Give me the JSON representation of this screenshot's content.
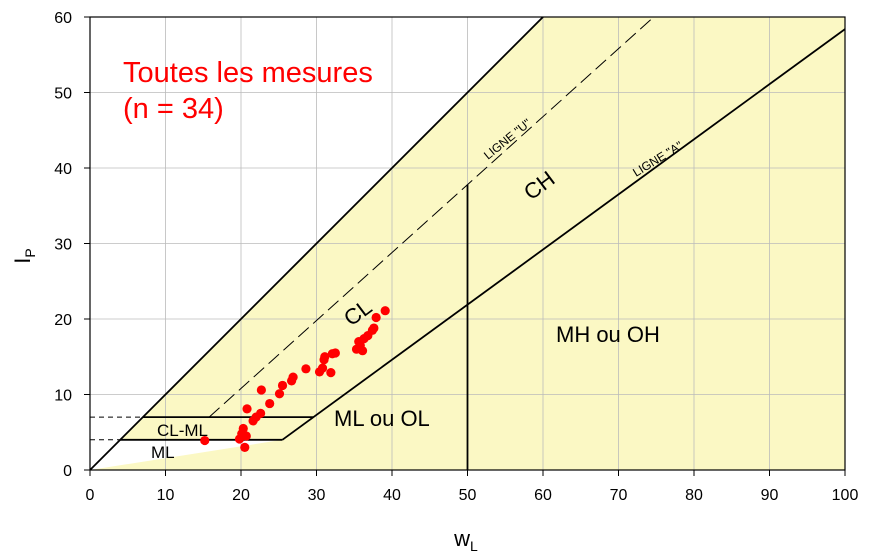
{
  "chart_data": {
    "type": "scatter",
    "title": "",
    "xlabel": "w",
    "xlabel_sub": "L",
    "ylabel": "I",
    "ylabel_sub": "P",
    "xlim": [
      0,
      100
    ],
    "ylim": [
      0,
      60
    ],
    "xticks": [
      0,
      10,
      20,
      30,
      40,
      50,
      60,
      70,
      80,
      90,
      100
    ],
    "yticks": [
      0,
      10,
      20,
      30,
      40,
      50,
      60
    ],
    "grid": true,
    "colors": {
      "zone_fill": "#fbf8c4",
      "grid": "#bbbbbb",
      "points": "#ff0000",
      "annotation": "#ff0000"
    },
    "annotation": {
      "line1": "Toutes les mesures",
      "line2": "(n = 34)"
    },
    "zone_labels": {
      "ch": "CH",
      "cl": "CL",
      "mh_oh": "MH ou OH",
      "ml_ol": "ML ou OL",
      "cl_ml": "CL-ML",
      "ml": "ML"
    },
    "line_labels": {
      "u_line": "LIGNE \"U\"",
      "a_line": "LIGNE \"A\""
    },
    "series": [
      {
        "values": [
          {
            "x": 15.2,
            "y": 3.9
          },
          {
            "x": 19.8,
            "y": 4.1
          },
          {
            "x": 20.1,
            "y": 4.8
          },
          {
            "x": 20.3,
            "y": 5.5
          },
          {
            "x": 20.5,
            "y": 3.0
          },
          {
            "x": 20.7,
            "y": 4.5
          },
          {
            "x": 20.8,
            "y": 8.1
          },
          {
            "x": 21.6,
            "y": 6.5
          },
          {
            "x": 22.0,
            "y": 7.0
          },
          {
            "x": 22.6,
            "y": 7.5
          },
          {
            "x": 22.7,
            "y": 10.6
          },
          {
            "x": 23.8,
            "y": 8.8
          },
          {
            "x": 25.1,
            "y": 10.1
          },
          {
            "x": 25.5,
            "y": 11.2
          },
          {
            "x": 26.7,
            "y": 11.8
          },
          {
            "x": 26.9,
            "y": 12.3
          },
          {
            "x": 28.6,
            "y": 13.4
          },
          {
            "x": 30.4,
            "y": 13.0
          },
          {
            "x": 30.8,
            "y": 13.5
          },
          {
            "x": 31.0,
            "y": 14.6
          },
          {
            "x": 31.1,
            "y": 15.0
          },
          {
            "x": 31.9,
            "y": 12.9
          },
          {
            "x": 32.1,
            "y": 15.4
          },
          {
            "x": 32.5,
            "y": 15.5
          },
          {
            "x": 35.3,
            "y": 16.0
          },
          {
            "x": 35.6,
            "y": 17.0
          },
          {
            "x": 35.8,
            "y": 16.5
          },
          {
            "x": 36.1,
            "y": 15.8
          },
          {
            "x": 36.3,
            "y": 17.4
          },
          {
            "x": 36.8,
            "y": 17.8
          },
          {
            "x": 37.4,
            "y": 18.5
          },
          {
            "x": 37.6,
            "y": 18.8
          },
          {
            "x": 37.9,
            "y": 20.2
          },
          {
            "x": 39.1,
            "y": 21.1
          }
        ]
      }
    ]
  }
}
